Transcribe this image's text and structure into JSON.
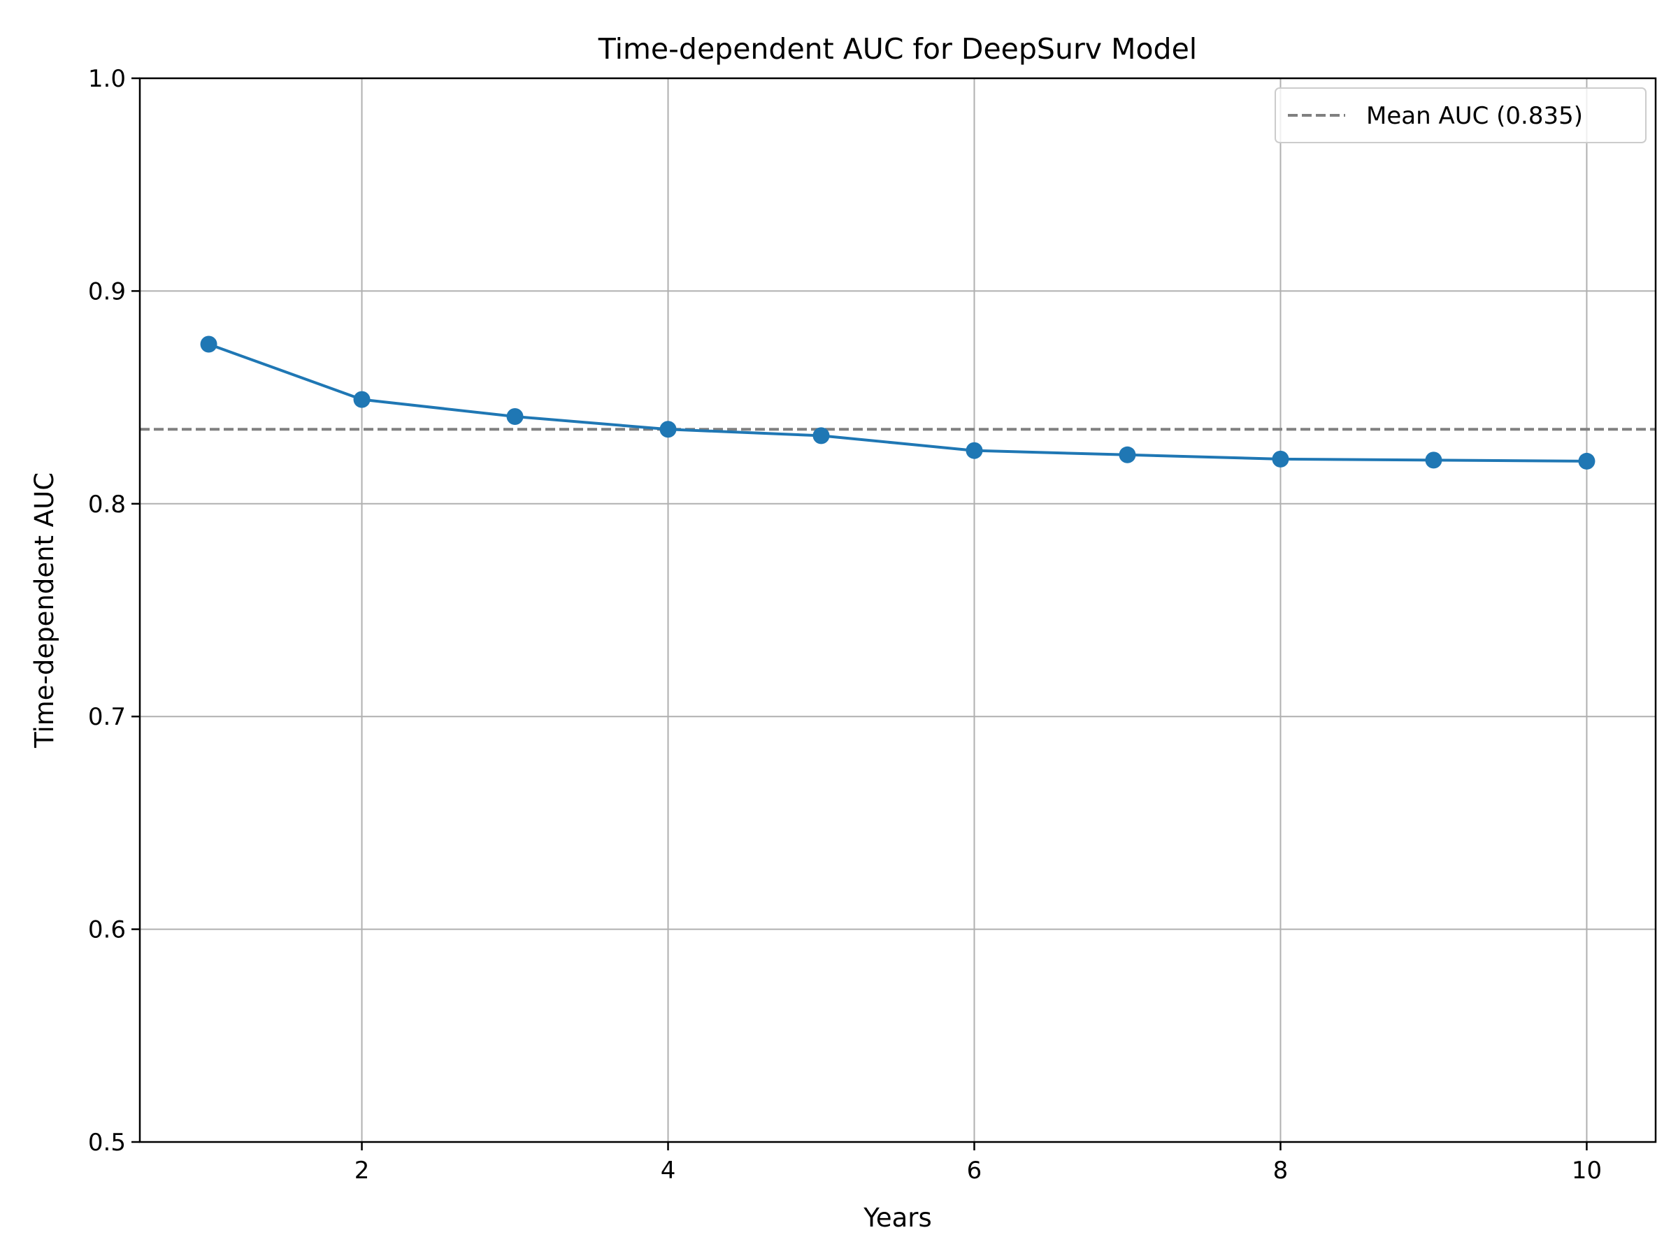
{
  "chart_data": {
    "type": "line",
    "title": "Time-dependent AUC for DeepSurv Model",
    "xlabel": "Years",
    "ylabel": "Time-dependent AUC",
    "xlim": [
      0.55,
      10.45
    ],
    "ylim": [
      0.5,
      1.0
    ],
    "xticks": [
      2,
      4,
      6,
      8,
      10
    ],
    "yticks": [
      0.5,
      0.6,
      0.7,
      0.8,
      0.9,
      1.0
    ],
    "xtick_labels": [
      "2",
      "4",
      "6",
      "8",
      "10"
    ],
    "ytick_labels": [
      "0.5",
      "0.6",
      "0.7",
      "0.8",
      "0.9",
      "1.0"
    ],
    "grid": true,
    "legend_position": "top-right",
    "series": [
      {
        "x": [
          1,
          2,
          3,
          4,
          5,
          6,
          7,
          8,
          9,
          10
        ],
        "values": [
          0.875,
          0.849,
          0.841,
          0.835,
          0.832,
          0.825,
          0.823,
          0.821,
          0.8205,
          0.82
        ],
        "color": "#1f77b4",
        "marker": "circle"
      }
    ],
    "reference_lines": [
      {
        "name": "Mean AUC (0.835)",
        "y": 0.835,
        "style": "dashed",
        "color": "#808080"
      }
    ]
  }
}
